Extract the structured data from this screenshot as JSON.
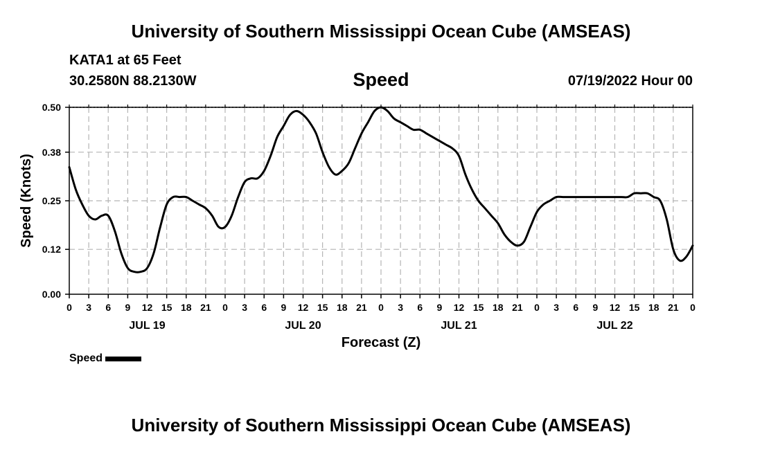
{
  "header": {
    "title": "University of Southern Mississippi Ocean Cube (AMSEAS)",
    "station": "KATA1 at 65 Feet",
    "coords": "30.2580N  88.2130W",
    "panel_title": "Speed",
    "datetime": "07/19/2022 Hour 00"
  },
  "legend": {
    "label": "Speed"
  },
  "footer": {
    "title": "University of Southern Mississippi Ocean Cube (AMSEAS)"
  },
  "chart_data": {
    "type": "line",
    "title": "Speed",
    "xlabel": "Forecast (Z)",
    "ylabel": "Speed (Knots)",
    "ylim": [
      0,
      0.5
    ],
    "xlim": [
      0,
      96
    ],
    "yticks": [
      0.0,
      0.12,
      0.25,
      0.38,
      0.5
    ],
    "ytick_labels": [
      "0.00",
      "0.12",
      "0.25",
      "0.38",
      "0.50"
    ],
    "xtick_labels": [
      "0",
      "3",
      "6",
      "9",
      "12",
      "15",
      "18",
      "21",
      "0",
      "3",
      "6",
      "9",
      "12",
      "15",
      "18",
      "21",
      "0",
      "3",
      "6",
      "9",
      "12",
      "15",
      "18",
      "21",
      "0",
      "3",
      "6",
      "9",
      "12",
      "15",
      "18",
      "21",
      "0"
    ],
    "day_labels": [
      {
        "label": "JUL 19",
        "hour": 12
      },
      {
        "label": "JUL 20",
        "hour": 36
      },
      {
        "label": "JUL 21",
        "hour": 60
      },
      {
        "label": "JUL 22",
        "hour": 84
      }
    ],
    "grid": true,
    "series": [
      {
        "name": "Speed",
        "color": "#000000",
        "x": [
          0,
          1,
          2,
          3,
          4,
          5,
          6,
          7,
          8,
          9,
          10,
          11,
          12,
          13,
          14,
          15,
          16,
          17,
          18,
          19,
          20,
          21,
          22,
          23,
          24,
          25,
          26,
          27,
          28,
          29,
          30,
          31,
          32,
          33,
          34,
          35,
          36,
          37,
          38,
          39,
          40,
          41,
          42,
          43,
          44,
          45,
          46,
          47,
          48,
          49,
          50,
          51,
          52,
          53,
          54,
          55,
          56,
          57,
          58,
          59,
          60,
          61,
          62,
          63,
          64,
          65,
          66,
          67,
          68,
          69,
          70,
          71,
          72,
          73,
          74,
          75,
          76,
          77,
          78,
          79,
          80,
          81,
          82,
          83,
          84,
          85,
          86,
          87,
          88,
          89,
          90,
          91,
          92,
          93,
          94,
          95,
          96
        ],
        "values": [
          0.34,
          0.28,
          0.24,
          0.21,
          0.2,
          0.21,
          0.21,
          0.17,
          0.11,
          0.07,
          0.06,
          0.06,
          0.07,
          0.11,
          0.18,
          0.24,
          0.26,
          0.26,
          0.26,
          0.25,
          0.24,
          0.23,
          0.21,
          0.18,
          0.18,
          0.21,
          0.26,
          0.3,
          0.31,
          0.31,
          0.33,
          0.37,
          0.42,
          0.45,
          0.48,
          0.49,
          0.48,
          0.46,
          0.43,
          0.38,
          0.34,
          0.32,
          0.33,
          0.35,
          0.39,
          0.43,
          0.46,
          0.49,
          0.5,
          0.49,
          0.47,
          0.46,
          0.45,
          0.44,
          0.44,
          0.43,
          0.42,
          0.41,
          0.4,
          0.39,
          0.37,
          0.32,
          0.28,
          0.25,
          0.23,
          0.21,
          0.19,
          0.16,
          0.14,
          0.13,
          0.14,
          0.18,
          0.22,
          0.24,
          0.25,
          0.26,
          0.26,
          0.26,
          0.26,
          0.26,
          0.26,
          0.26,
          0.26,
          0.26,
          0.26,
          0.26,
          0.26,
          0.27,
          0.27,
          0.27,
          0.26,
          0.25,
          0.2,
          0.12,
          0.09,
          0.1,
          0.13
        ]
      }
    ]
  }
}
